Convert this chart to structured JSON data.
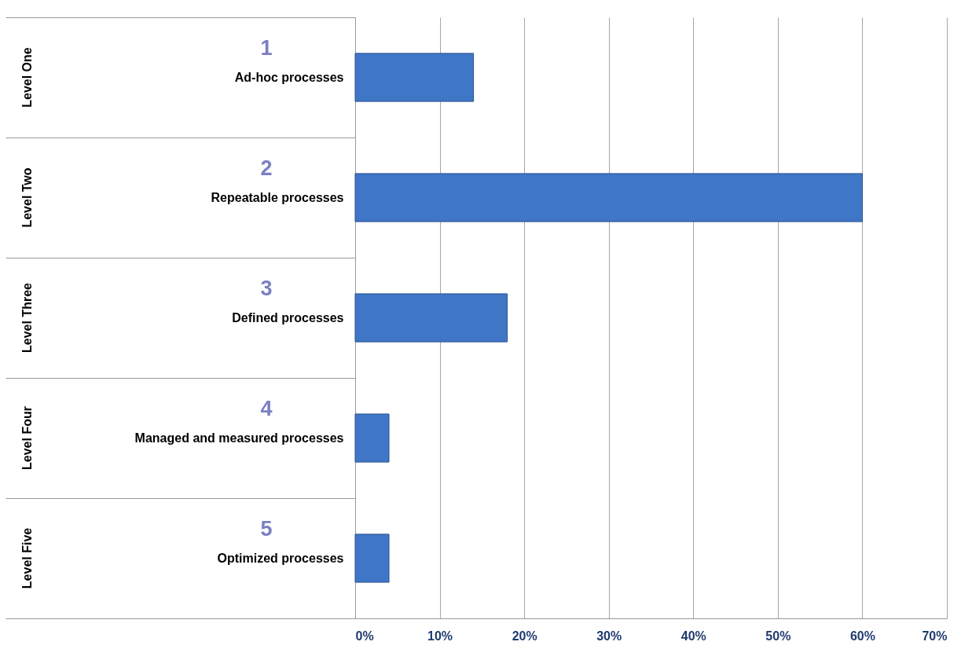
{
  "chart_data": {
    "type": "bar",
    "orientation": "horizontal",
    "categories": [
      "Ad-hoc processes",
      "Repeatable processes",
      "Defined processes",
      "Managed and measured processes",
      "Optimized processes"
    ],
    "values": [
      14,
      60,
      18,
      4,
      4
    ],
    "color": "#3f76c6",
    "xlim": [
      0,
      70
    ],
    "xticks": [
      {
        "value": 0,
        "label": "0%"
      },
      {
        "value": 10,
        "label": "10%"
      },
      {
        "value": 20,
        "label": "20%"
      },
      {
        "value": 30,
        "label": "30%"
      },
      {
        "value": 40,
        "label": "40%"
      },
      {
        "value": 50,
        "label": "50%"
      },
      {
        "value": 60,
        "label": "60%"
      },
      {
        "value": 70,
        "label": "70%"
      }
    ],
    "grid": "x",
    "annotations": [
      "Level One",
      "Level Two",
      "Level Three",
      "Level Four",
      "Level Five",
      "1",
      "2",
      "3",
      "4",
      "5"
    ]
  }
}
